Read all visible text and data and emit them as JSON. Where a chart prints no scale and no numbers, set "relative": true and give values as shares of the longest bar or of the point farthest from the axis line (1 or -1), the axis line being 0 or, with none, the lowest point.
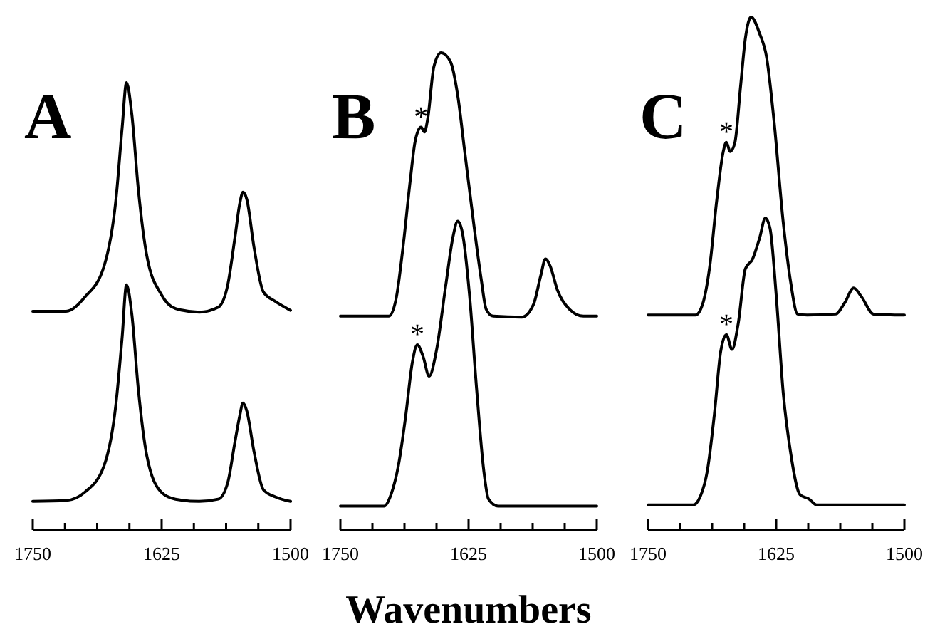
{
  "chart_data": [
    {
      "type": "line",
      "title": "A",
      "relative": true,
      "xlim": [
        1750,
        1500
      ],
      "xticks": [
        1750,
        {
          "value": 1718.75,
          "label": null
        },
        {
          "value": 1687.5,
          "label": null
        },
        {
          "value": 1656.25,
          "label": null
        },
        1625,
        {
          "value": 1593.75,
          "label": null
        },
        {
          "value": 1562.5,
          "label": null
        },
        {
          "value": 1531.25,
          "label": null
        },
        1500
      ],
      "series": [
        {
          "color": "#000000",
          "x": [
            1750,
            1717.7,
            1699.3,
            1680.8,
            1669.3,
            1663.3,
            1659.1,
            1654.0,
            1647.6,
            1639.3,
            1625.5,
            1611.6,
            1588.5,
            1570.1,
            1560.9,
            1553.9,
            1549.3,
            1546.1,
            1542.4,
            1535.5,
            1526.3,
            1514.7,
            1500
          ],
          "values": [
            0.489,
            0.489,
            0.521,
            0.59,
            0.739,
            0.899,
            1.0,
            0.931,
            0.761,
            0.612,
            0.527,
            0.495,
            0.487,
            0.498,
            0.548,
            0.654,
            0.729,
            0.755,
            0.739,
            0.633,
            0.532,
            0.511,
            0.491
          ]
        },
        {
          "color": "#000000",
          "x": [
            1750,
            1717.7,
            1699.3,
            1680.8,
            1669.3,
            1663.3,
            1659.1,
            1654.0,
            1647.6,
            1639.3,
            1625.5,
            1611.6,
            1588.5,
            1570.1,
            1560.9,
            1553.9,
            1549.3,
            1546.1,
            1542.4,
            1535.5,
            1526.3,
            1514.7,
            1500
          ],
          "values": [
            0.064,
            0.066,
            0.085,
            0.144,
            0.282,
            0.431,
            0.548,
            0.484,
            0.314,
            0.165,
            0.085,
            0.069,
            0.064,
            0.069,
            0.106,
            0.197,
            0.255,
            0.284,
            0.266,
            0.176,
            0.09,
            0.074,
            0.064
          ]
        }
      ]
    },
    {
      "type": "line",
      "title": "B",
      "xlabel": "Wavenumbers",
      "relative": true,
      "xlim": [
        1750,
        1500
      ],
      "xticks": [
        1750,
        {
          "value": 1718.75,
          "label": null
        },
        {
          "value": 1687.5,
          "label": null
        },
        {
          "value": 1656.25,
          "label": null
        },
        1625,
        {
          "value": 1593.75,
          "label": null
        },
        {
          "value": 1562.5,
          "label": null
        },
        {
          "value": 1531.25,
          "label": null
        },
        1500
      ],
      "annotations": [
        {
          "text": "*",
          "x": 1671.3,
          "y": 0.844
        },
        {
          "text": "*",
          "x": 1675.0,
          "y": 0.388
        }
      ],
      "series": [
        {
          "color": "#000000",
          "x": [
            1750,
            1702.8,
            1695.8,
            1688.9,
            1681.9,
            1677.3,
            1674.1,
            1671.3,
            1668.0,
            1664.8,
            1658.8,
            1651.8,
            1642.6,
            1635.6,
            1628.7,
            1619.4,
            1612.5,
            1607.9,
            1600.9,
            1573.1,
            1561.6,
            1554.6,
            1550.0,
            1545.4,
            1538.4,
            1526.8,
            1512.9,
            1500
          ],
          "values": [
            0.448,
            0.448,
            0.483,
            0.593,
            0.732,
            0.812,
            0.837,
            0.844,
            0.834,
            0.862,
            0.971,
            1.0,
            0.981,
            0.911,
            0.792,
            0.632,
            0.523,
            0.463,
            0.448,
            0.446,
            0.473,
            0.533,
            0.568,
            0.553,
            0.503,
            0.463,
            0.448,
            0.448
          ]
        },
        {
          "color": "#000000",
          "x": [
            1750,
            1707.4,
            1700.5,
            1693.5,
            1686.6,
            1679.6,
            1675.0,
            1669.4,
            1663.4,
            1656.5,
            1647.2,
            1640.3,
            1635.6,
            1631.0,
            1624.1,
            1617.1,
            1610.2,
            1605.6,
            1596.3,
            1500
          ],
          "values": [
            0.05,
            0.05,
            0.075,
            0.134,
            0.234,
            0.354,
            0.388,
            0.364,
            0.322,
            0.374,
            0.513,
            0.613,
            0.647,
            0.623,
            0.493,
            0.294,
            0.125,
            0.065,
            0.05,
            0.05
          ]
        }
      ]
    },
    {
      "type": "line",
      "title": "C",
      "relative": true,
      "xlim": [
        1750,
        1500
      ],
      "xticks": [
        1750,
        {
          "value": 1718.75,
          "label": null
        },
        {
          "value": 1687.5,
          "label": null
        },
        {
          "value": 1656.25,
          "label": null
        },
        1625,
        {
          "value": 1593.75,
          "label": null
        },
        {
          "value": 1562.5,
          "label": null
        },
        {
          "value": 1531.25,
          "label": null
        },
        1500
      ],
      "annotations": [
        {
          "text": "*",
          "x": 1673.6,
          "y": 0.756
        },
        {
          "text": "*",
          "x": 1673.6,
          "y": 0.381
        }
      ],
      "series": [
        {
          "color": "#000000",
          "x": [
            1750,
            1703.7,
            1696.8,
            1689.8,
            1682.9,
            1676.8,
            1673.6,
            1669.9,
            1665.3,
            1659.7,
            1655.1,
            1649.5,
            1641.2,
            1634.3,
            1627.3,
            1618.0,
            1611.1,
            1604.2,
            1594.9,
            1567.1,
            1557.9,
            1549.5,
            1541.6,
            1530.1,
            1500
          ],
          "values": [
            0.419,
            0.419,
            0.44,
            0.514,
            0.644,
            0.736,
            0.756,
            0.738,
            0.755,
            0.866,
            0.958,
            1.0,
            0.968,
            0.921,
            0.801,
            0.597,
            0.486,
            0.421,
            0.419,
            0.421,
            0.444,
            0.472,
            0.454,
            0.421,
            0.419
          ]
        },
        {
          "color": "#000000",
          "x": [
            1750,
            1706.0,
            1699.1,
            1692.1,
            1685.2,
            1679.2,
            1673.6,
            1668.1,
            1662.0,
            1655.1,
            1648.1,
            1641.2,
            1635.6,
            1631.0,
            1625.0,
            1618.0,
            1611.1,
            1601.8,
            1592.6,
            1585.6,
            1500
          ],
          "values": [
            0.049,
            0.049,
            0.065,
            0.116,
            0.227,
            0.347,
            0.381,
            0.352,
            0.403,
            0.509,
            0.528,
            0.569,
            0.608,
            0.588,
            0.458,
            0.264,
            0.153,
            0.069,
            0.06,
            0.049,
            0.049
          ]
        }
      ]
    }
  ]
}
